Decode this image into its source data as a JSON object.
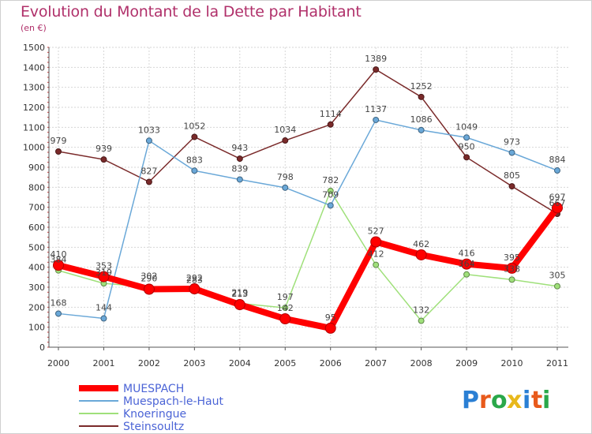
{
  "header": {
    "title": "Evolution du Montant de la Dette par Habitant",
    "subtitle": "(en €)"
  },
  "logo": {
    "letters": [
      "P",
      "r",
      "o",
      "x",
      "i",
      "t",
      "i"
    ],
    "colors": [
      "#2a7fd4",
      "#e85a1b",
      "#2aa84a",
      "#e8b81b",
      "#2a7fd4",
      "#e85a1b",
      "#2aa84a"
    ]
  },
  "chart_data": {
    "type": "line",
    "title": "Evolution du Montant de la Dette par Habitant",
    "ylabel": "(en €)",
    "xlabel": "",
    "x": [
      "2000",
      "2001",
      "2002",
      "2003",
      "2004",
      "2005",
      "2006",
      "2007",
      "2008",
      "2009",
      "2010",
      "2011"
    ],
    "ylim": [
      0,
      1500
    ],
    "yticks": [
      0,
      100,
      200,
      300,
      400,
      500,
      600,
      700,
      800,
      900,
      1000,
      1100,
      1200,
      1300,
      1400,
      1500
    ],
    "grid": true,
    "legend": "bottom-left",
    "series": [
      {
        "name": "Steinsoultz",
        "color": "#7a2a2a",
        "values": [
          979,
          939,
          827,
          1052,
          943,
          1034,
          1114,
          1389,
          1252,
          950,
          805,
          667
        ]
      },
      {
        "name": "Knoeringue",
        "color": "#9fe07a",
        "values": [
          384,
          319,
          302,
          283,
          219,
          197,
          782,
          412,
          132,
          364,
          338,
          305
        ]
      },
      {
        "name": "Muespach-le-Haut",
        "color": "#6aa8d8",
        "values": [
          168,
          144,
          1033,
          883,
          839,
          798,
          709,
          1137,
          1086,
          1049,
          973,
          884
        ]
      },
      {
        "name": "MUESPACH",
        "color": "#ff0000",
        "values": [
          410,
          353,
          290,
          292,
          213,
          142,
          95,
          527,
          462,
          416,
          395,
          697
        ]
      }
    ]
  }
}
